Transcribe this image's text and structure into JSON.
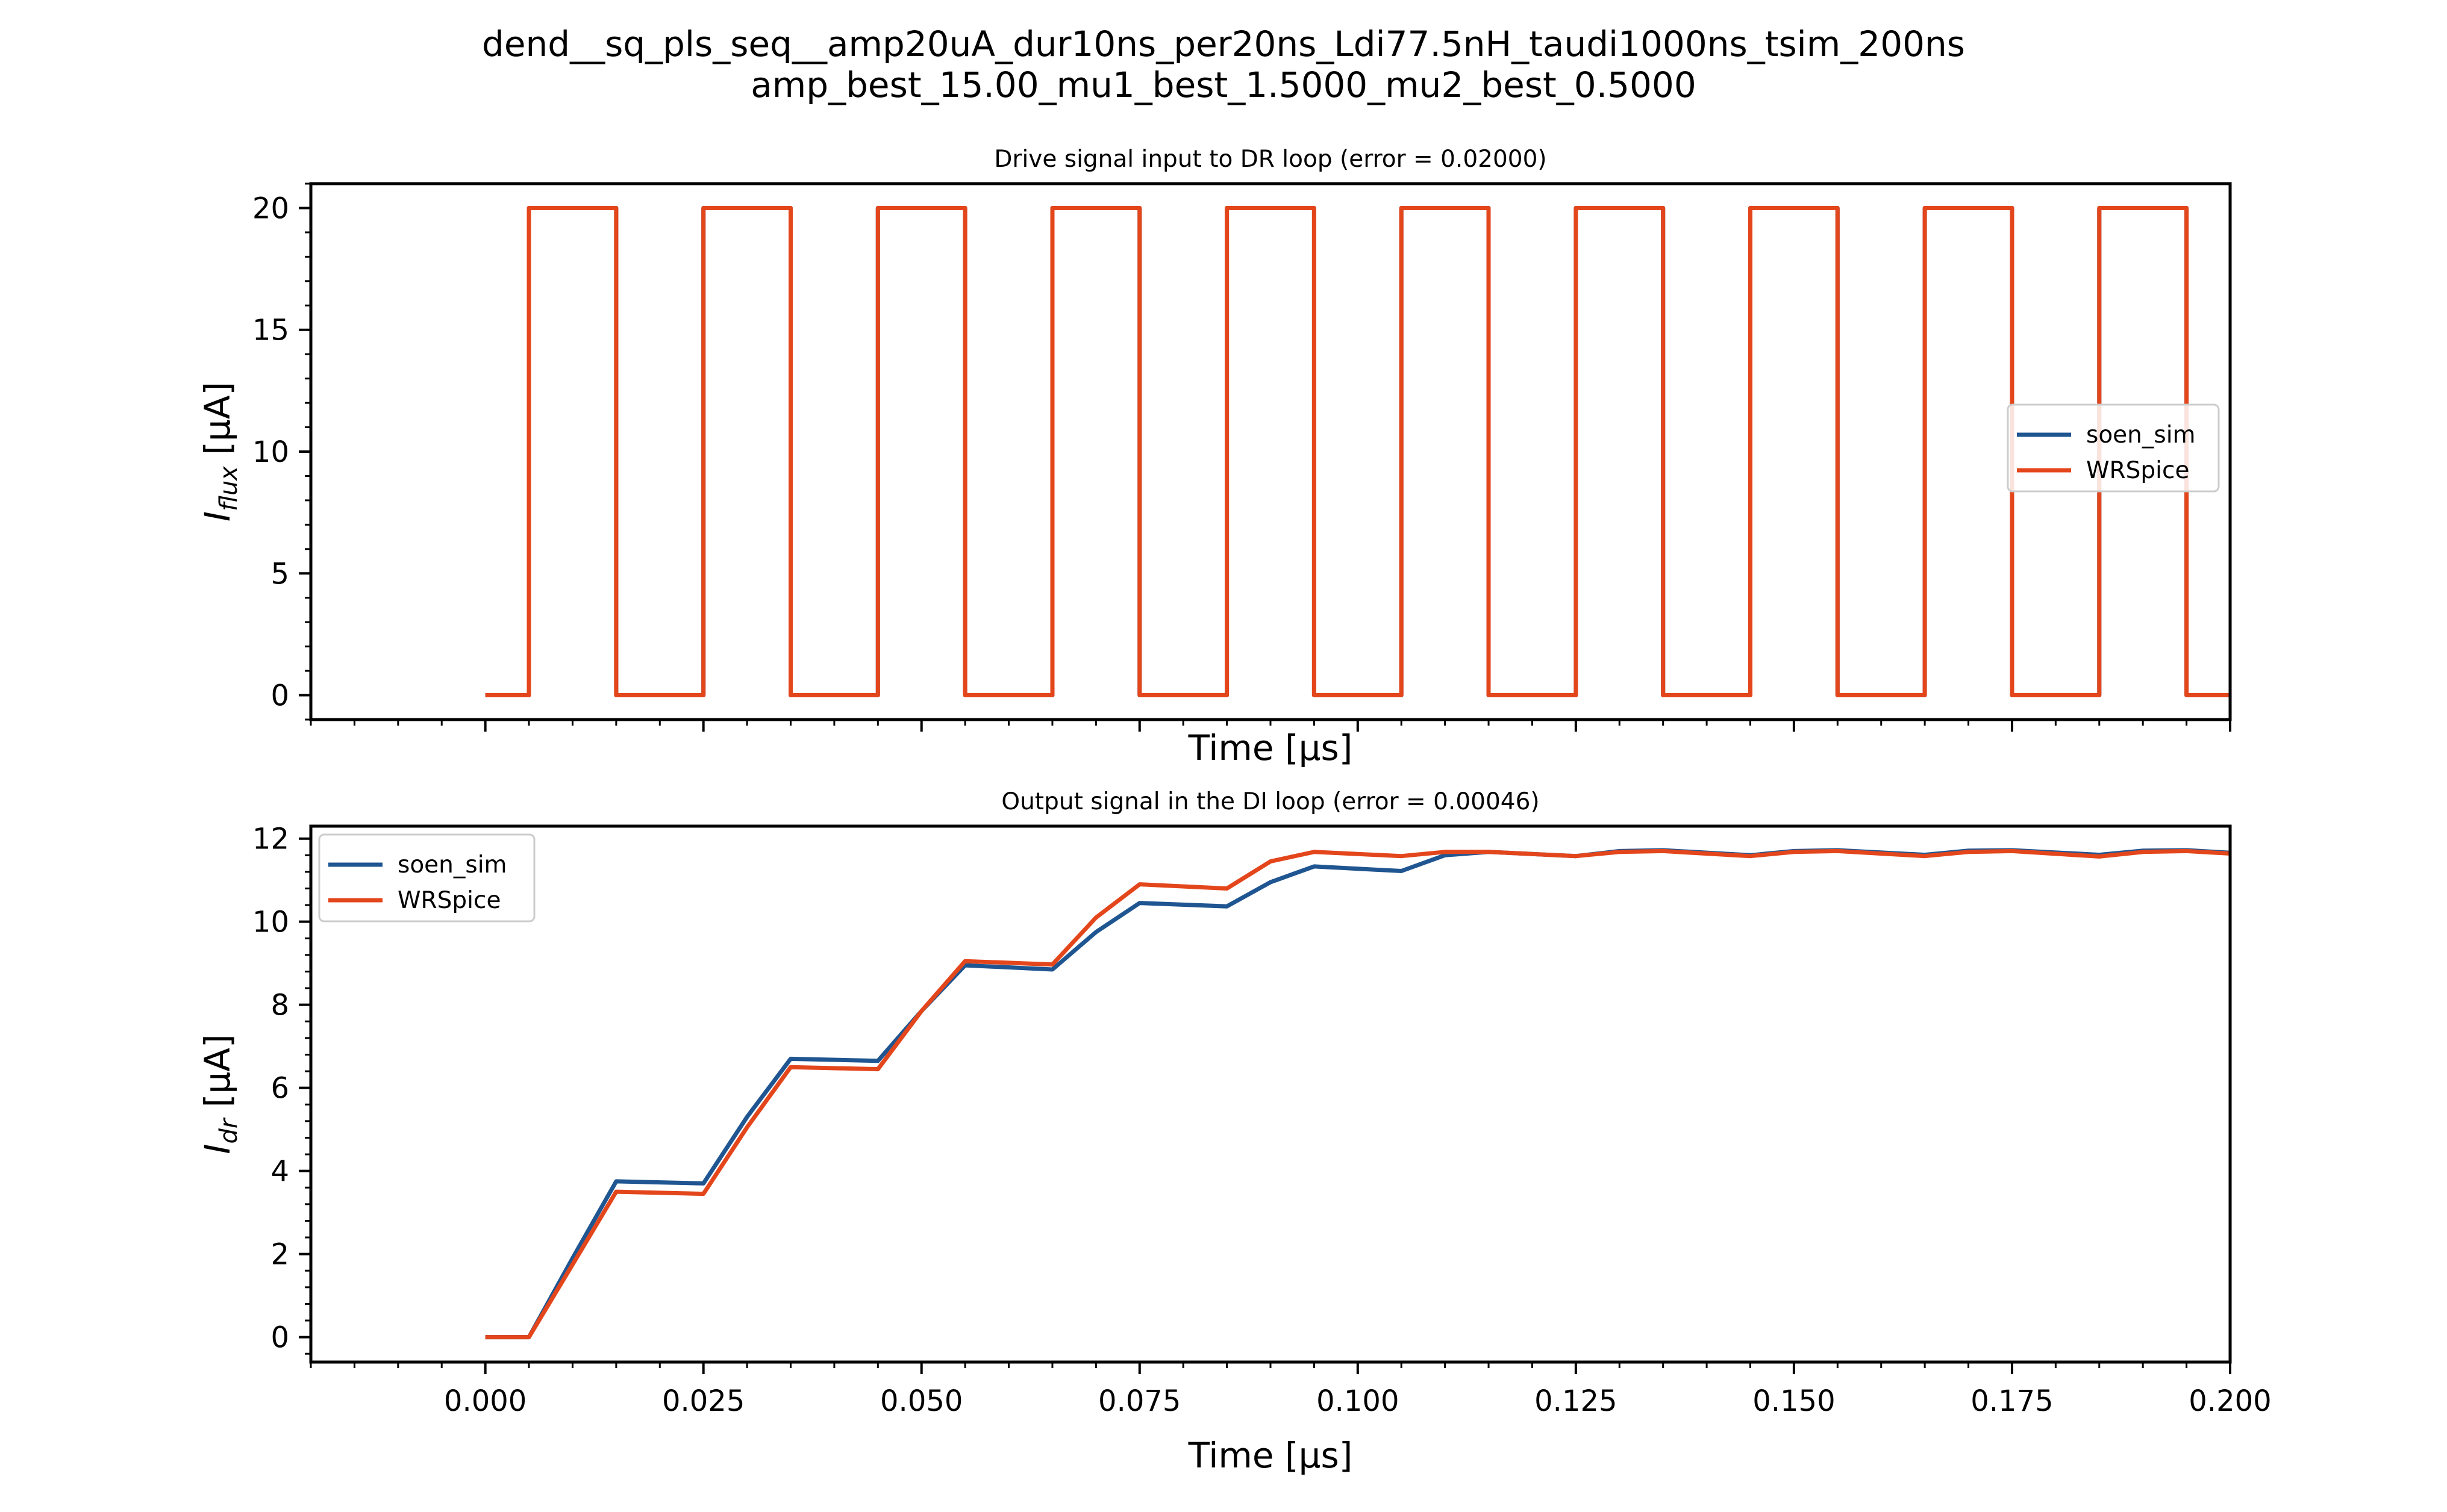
{
  "suptitle": {
    "line1": "dend__sq_pls_seq__amp20uA_dur10ns_per20ns_Ldi77.5nH_taudi1000ns_tsim_200ns",
    "line2": "amp_best_15.00_mu1_best_1.5000_mu2_best_0.5000"
  },
  "colors": {
    "soen_sim": "#1f5591",
    "WRSpice": "#e4461c"
  },
  "chart_data": [
    {
      "type": "line",
      "title": "Drive signal input to DR loop (error = 0.02000)",
      "xlabel": "Time [μs]",
      "ylabel_main": "I",
      "ylabel_sub": "flux",
      "ylabel_rest": " [μA]",
      "xlim": [
        -0.02,
        0.2
      ],
      "ylim": [
        -1,
        21
      ],
      "xticks": [
        0.0,
        0.025,
        0.05,
        0.075,
        0.1,
        0.125,
        0.15,
        0.175,
        0.2
      ],
      "xtick_labels_visible": false,
      "yticks": [
        0,
        5,
        10,
        15,
        20
      ],
      "ytick_labels": [
        "0",
        "5",
        "10",
        "15",
        "20"
      ],
      "legend": "center-right",
      "grid": false,
      "series": [
        {
          "name": "soen_sim",
          "color": "#1f5591",
          "x": [
            0.0,
            0.005,
            0.005,
            0.015,
            0.015,
            0.025,
            0.025,
            0.035,
            0.035,
            0.045,
            0.045,
            0.055,
            0.055,
            0.065,
            0.065,
            0.075,
            0.075,
            0.085,
            0.085,
            0.095,
            0.095,
            0.105,
            0.105,
            0.115,
            0.115,
            0.125,
            0.125,
            0.135,
            0.135,
            0.145,
            0.145,
            0.155,
            0.155,
            0.165,
            0.165,
            0.175,
            0.175,
            0.185,
            0.185,
            0.195,
            0.195,
            0.2
          ],
          "y": [
            0,
            0,
            20,
            20,
            0,
            0,
            20,
            20,
            0,
            0,
            20,
            20,
            0,
            0,
            20,
            20,
            0,
            0,
            20,
            20,
            0,
            0,
            20,
            20,
            0,
            0,
            20,
            20,
            0,
            0,
            20,
            20,
            0,
            0,
            20,
            20,
            0,
            0,
            20,
            20,
            0,
            0
          ]
        },
        {
          "name": "WRSpice",
          "color": "#e4461c",
          "x": [
            0.0,
            0.005,
            0.005,
            0.015,
            0.015,
            0.025,
            0.025,
            0.035,
            0.035,
            0.045,
            0.045,
            0.055,
            0.055,
            0.065,
            0.065,
            0.075,
            0.075,
            0.085,
            0.085,
            0.095,
            0.095,
            0.105,
            0.105,
            0.115,
            0.115,
            0.125,
            0.125,
            0.135,
            0.135,
            0.145,
            0.145,
            0.155,
            0.155,
            0.165,
            0.165,
            0.175,
            0.175,
            0.185,
            0.185,
            0.195,
            0.195,
            0.2
          ],
          "y": [
            0,
            0,
            20,
            20,
            0,
            0,
            20,
            20,
            0,
            0,
            20,
            20,
            0,
            0,
            20,
            20,
            0,
            0,
            20,
            20,
            0,
            0,
            20,
            20,
            0,
            0,
            20,
            20,
            0,
            0,
            20,
            20,
            0,
            0,
            20,
            20,
            0,
            0,
            20,
            20,
            0,
            0
          ]
        }
      ]
    },
    {
      "type": "line",
      "title": "Output signal in the DI loop (error = 0.00046)",
      "xlabel": "Time [μs]",
      "ylabel_main": "I",
      "ylabel_sub": "dr",
      "ylabel_rest": " [μA]",
      "xlim": [
        -0.02,
        0.2
      ],
      "ylim": [
        -0.6,
        12.3
      ],
      "xticks": [
        0.0,
        0.025,
        0.05,
        0.075,
        0.1,
        0.125,
        0.15,
        0.175,
        0.2
      ],
      "xtick_labels": [
        "0.000",
        "0.025",
        "0.050",
        "0.075",
        "0.100",
        "0.125",
        "0.150",
        "0.175",
        "0.200"
      ],
      "xtick_labels_visible": true,
      "yticks": [
        0,
        2,
        4,
        6,
        8,
        10,
        12
      ],
      "ytick_labels": [
        "0",
        "2",
        "4",
        "6",
        "8",
        "10",
        "12"
      ],
      "legend": "upper-left",
      "grid": false,
      "series": [
        {
          "name": "soen_sim",
          "color": "#1f5591",
          "x": [
            0.0,
            0.005,
            0.01,
            0.015,
            0.025,
            0.03,
            0.035,
            0.045,
            0.05,
            0.055,
            0.065,
            0.07,
            0.075,
            0.085,
            0.09,
            0.095,
            0.105,
            0.11,
            0.115,
            0.125,
            0.13,
            0.135,
            0.145,
            0.15,
            0.155,
            0.165,
            0.17,
            0.175,
            0.185,
            0.19,
            0.195,
            0.2
          ],
          "y": [
            0.0,
            0.0,
            1.9,
            3.75,
            3.7,
            5.3,
            6.7,
            6.65,
            7.85,
            8.95,
            8.85,
            9.75,
            10.45,
            10.37,
            10.95,
            11.33,
            11.22,
            11.6,
            11.68,
            11.58,
            11.7,
            11.72,
            11.6,
            11.7,
            11.72,
            11.61,
            11.71,
            11.72,
            11.61,
            11.71,
            11.72,
            11.66
          ]
        },
        {
          "name": "WRSpice",
          "color": "#e4461c",
          "x": [
            0.0,
            0.005,
            0.01,
            0.015,
            0.025,
            0.03,
            0.035,
            0.045,
            0.05,
            0.055,
            0.065,
            0.07,
            0.075,
            0.085,
            0.09,
            0.095,
            0.105,
            0.11,
            0.115,
            0.125,
            0.13,
            0.135,
            0.145,
            0.15,
            0.155,
            0.165,
            0.17,
            0.175,
            0.185,
            0.19,
            0.195,
            0.2
          ],
          "y": [
            0.0,
            0.0,
            1.75,
            3.5,
            3.45,
            5.05,
            6.5,
            6.45,
            7.85,
            9.05,
            8.97,
            10.1,
            10.9,
            10.8,
            11.45,
            11.68,
            11.58,
            11.68,
            11.68,
            11.58,
            11.68,
            11.7,
            11.58,
            11.68,
            11.7,
            11.58,
            11.68,
            11.7,
            11.57,
            11.68,
            11.7,
            11.64
          ]
        }
      ]
    }
  ]
}
